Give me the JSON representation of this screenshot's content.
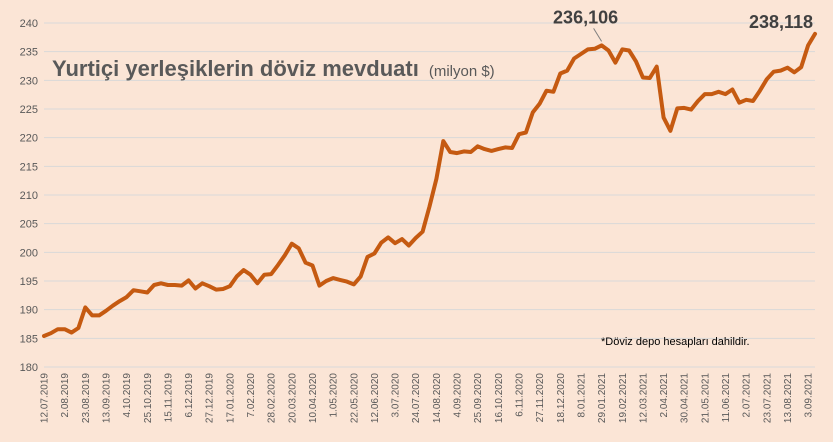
{
  "chart_data": {
    "type": "line",
    "title": "Yurtiçi yerleşiklerin döviz mevduatı",
    "title_unit": "(milyon $)",
    "footnote": "*Döviz depo hesapları dahildir.",
    "ylim": [
      180,
      240
    ],
    "yticks": [
      180,
      185,
      190,
      195,
      200,
      205,
      210,
      215,
      220,
      225,
      230,
      235,
      240
    ],
    "grid": "horizontal",
    "legend": "none",
    "line_color": "#c55a11",
    "background_color": "#fbe5d6",
    "xtick_labels": [
      "12.07.2019",
      "2.08.2019",
      "23.08.2019",
      "13.09.2019",
      "4.10.2019",
      "25.10.2019",
      "15.11.2019",
      "6.12.2019",
      "27.12.2019",
      "17.01.2020",
      "7.02.2020",
      "28.02.2020",
      "20.03.2020",
      "10.04.2020",
      "1.05.2020",
      "22.05.2020",
      "12.06.2020",
      "3.07.2020",
      "24.07.2020",
      "14.08.2020",
      "4.09.2020",
      "25.09.2020",
      "16.10.2020",
      "6.11.2020",
      "27.11.2020",
      "18.12.2020",
      "8.01.2021",
      "29.01.2021",
      "19.02.2021",
      "12.03.2021",
      "2.04.2021",
      "30.04.2021",
      "21.05.2021",
      "11.06.2021",
      "2.07.2021",
      "23.07.2021",
      "13.08.2021",
      "3.09.2021"
    ],
    "annotations": [
      {
        "text": "236,106",
        "index": 81
      },
      {
        "text": "238,118",
        "index": 112
      }
    ],
    "series": [
      {
        "values": [
          185.4,
          185.9,
          186.6,
          186.6,
          186.0,
          186.8,
          190.4,
          189.0,
          189.0,
          189.8,
          190.7,
          191.5,
          192.2,
          193.4,
          193.2,
          193.0,
          194.3,
          194.6,
          194.3,
          194.3,
          194.2,
          195.1,
          193.7,
          194.6,
          194.1,
          193.5,
          193.6,
          194.1,
          195.8,
          196.9,
          196.1,
          194.6,
          196.1,
          196.2,
          197.8,
          199.5,
          201.5,
          200.7,
          198.2,
          197.7,
          194.2,
          195.0,
          195.5,
          195.2,
          194.9,
          194.4,
          195.8,
          199.2,
          199.8,
          201.7,
          202.6,
          201.6,
          202.3,
          201.2,
          202.5,
          203.6,
          208.0,
          212.8,
          219.4,
          217.5,
          217.3,
          217.6,
          217.5,
          218.5,
          218.0,
          217.7,
          218.0,
          218.3,
          218.2,
          220.6,
          220.9,
          224.4,
          225.9,
          228.2,
          228.0,
          231.2,
          231.7,
          233.8,
          234.6,
          235.4,
          235.5,
          236.1,
          235.2,
          233.1,
          235.4,
          235.2,
          233.3,
          230.5,
          230.4,
          232.4,
          223.5,
          221.2,
          225.1,
          225.2,
          224.9,
          226.4,
          227.6,
          227.6,
          228.0,
          227.6,
          228.4,
          226.1,
          226.6,
          226.4,
          228.2,
          230.2,
          231.5,
          231.7,
          232.2,
          231.4,
          232.3,
          236.1,
          238.1
        ]
      }
    ]
  }
}
